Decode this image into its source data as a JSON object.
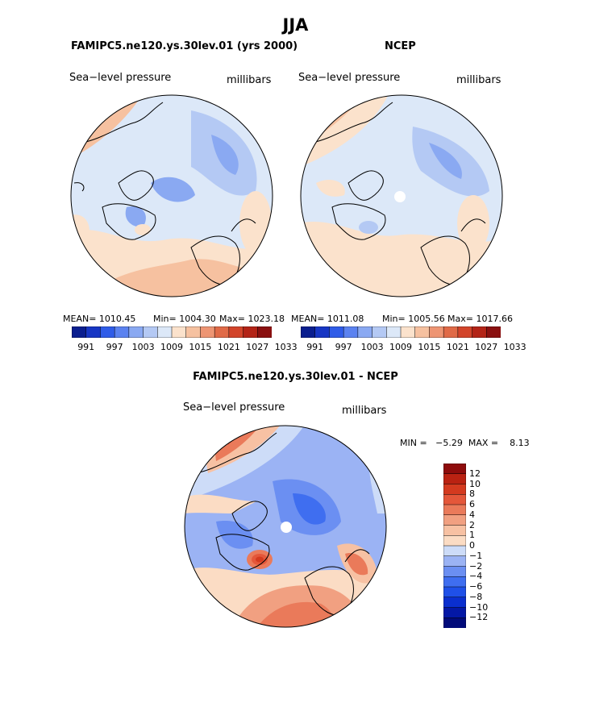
{
  "main_title": "JJA",
  "colors": {
    "ramp13": [
      "#0a1e8f",
      "#1736c4",
      "#2f5ce8",
      "#5b82f0",
      "#8aa9f2",
      "#b4c9f4",
      "#dce8f8",
      "#fbe2cc",
      "#f6c1a0",
      "#ee9573",
      "#e06a47",
      "#d2442a",
      "#b32417",
      "#8a1010"
    ],
    "diff": [
      "#020b7a",
      "#0418a6",
      "#0a2fcf",
      "#1f50e8",
      "#3f6ef0",
      "#6b8ff2",
      "#9bb3f4",
      "#cddcf8",
      "#fbdcc4",
      "#f7c1a3",
      "#f1a081",
      "#ea7a5a",
      "#e4573a",
      "#d43a1f",
      "#ba2212",
      "#8e0c0c"
    ],
    "coast": "#000000",
    "pole_hole": "#ffffff"
  },
  "panels": [
    {
      "name": "FAMIPC5.ne120.ys.30lev.01 (yrs 2000)",
      "field_label": "Sea−level pressure",
      "units": "millibars",
      "stats": {
        "mean": "MEAN= 1010.45",
        "min": "Min= 1004.30",
        "max": "Max= 1023.18"
      },
      "colorbar_ticks": [
        "991",
        "997",
        "1003",
        "1009",
        "1015",
        "1021",
        "1027",
        "1033"
      ]
    },
    {
      "name": "NCEP",
      "field_label": "Sea−level pressure",
      "units": "millibars",
      "stats": {
        "mean": "MEAN= 1011.08",
        "min": "Min= 1005.56",
        "max": "Max= 1017.66"
      },
      "colorbar_ticks": [
        "991",
        "997",
        "1003",
        "1009",
        "1015",
        "1021",
        "1027",
        "1033"
      ]
    }
  ],
  "diff_panel": {
    "name": "FAMIPC5.ne120.ys.30lev.01 - NCEP",
    "field_label": "Sea−level pressure",
    "units": "millibars",
    "stats": "MIN =   −5.29  MAX =    8.13",
    "colorbar_labels": [
      "12",
      "10",
      "8",
      "6",
      "4",
      "2",
      "1",
      "0",
      "−1",
      "−2",
      "−4",
      "−6",
      "−8",
      "−10",
      "−12"
    ]
  }
}
